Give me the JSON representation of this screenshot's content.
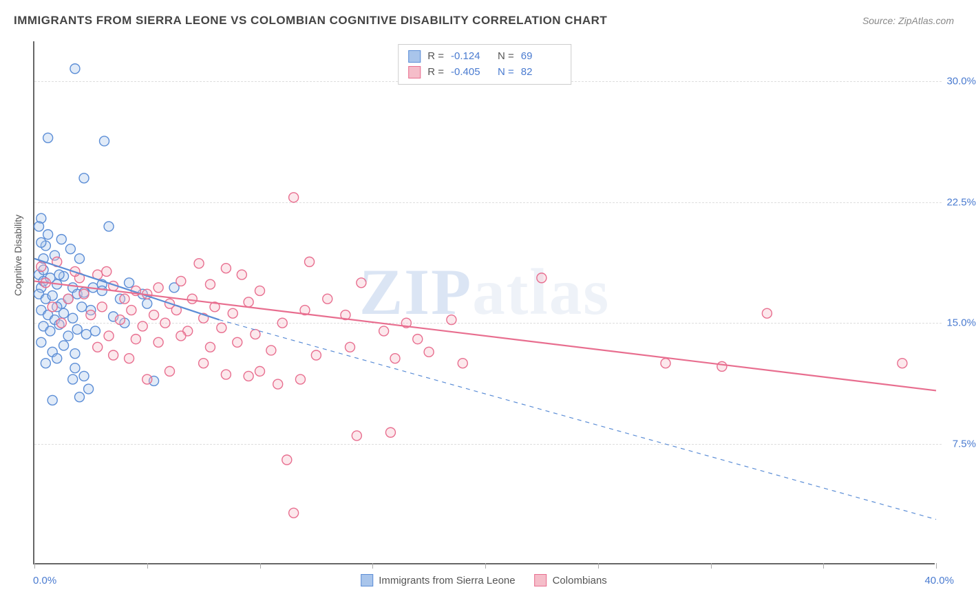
{
  "header": {
    "title": "IMMIGRANTS FROM SIERRA LEONE VS COLOMBIAN COGNITIVE DISABILITY CORRELATION CHART",
    "source_prefix": "Source: ",
    "source_name": "ZipAtlas.com"
  },
  "chart": {
    "type": "scatter",
    "ylabel": "Cognitive Disability",
    "x_min": 0.0,
    "x_max": 40.0,
    "x_min_label": "0.0%",
    "x_max_label": "40.0%",
    "y_min": 0.0,
    "y_max": 32.5,
    "y_ticks": [
      7.5,
      15.0,
      22.5,
      30.0
    ],
    "y_tick_labels": [
      "7.5%",
      "15.0%",
      "22.5%",
      "30.0%"
    ],
    "x_tick_positions": [
      0,
      5,
      10,
      15,
      20,
      25,
      30,
      35,
      40
    ],
    "background_color": "#ffffff",
    "grid_color": "#dddddd",
    "axis_color": "#666666",
    "tick_label_color": "#4a7bd0",
    "marker_radius": 7,
    "marker_fill_opacity": 0.35,
    "marker_stroke_width": 1.4,
    "line_width": 2.2,
    "watermark_text_1": "ZIP",
    "watermark_text_2": "atlas",
    "series": [
      {
        "name": "Immigrants from Sierra Leone",
        "color_stroke": "#5b8dd6",
        "color_fill": "#a9c5eb",
        "R": "-0.124",
        "N": "69",
        "trend": {
          "x1": 0.0,
          "y1": 19.0,
          "x2": 8.2,
          "y2": 15.2,
          "dashed_ext_x2": 40.0,
          "dashed_ext_y2": 2.8
        },
        "points": [
          [
            1.8,
            30.8
          ],
          [
            0.6,
            26.5
          ],
          [
            3.1,
            26.3
          ],
          [
            2.2,
            24.0
          ],
          [
            0.3,
            21.5
          ],
          [
            0.2,
            21.0
          ],
          [
            0.6,
            20.5
          ],
          [
            1.2,
            20.2
          ],
          [
            0.5,
            19.8
          ],
          [
            0.2,
            18.0
          ],
          [
            0.4,
            18.3
          ],
          [
            0.9,
            19.2
          ],
          [
            1.6,
            19.6
          ],
          [
            2.0,
            19.0
          ],
          [
            0.3,
            17.2
          ],
          [
            0.4,
            17.6
          ],
          [
            0.7,
            17.8
          ],
          [
            1.0,
            17.4
          ],
          [
            1.3,
            17.9
          ],
          [
            1.7,
            17.2
          ],
          [
            1.1,
            18.0
          ],
          [
            0.2,
            16.8
          ],
          [
            0.5,
            16.5
          ],
          [
            0.8,
            16.7
          ],
          [
            1.2,
            16.2
          ],
          [
            1.5,
            16.5
          ],
          [
            1.9,
            16.8
          ],
          [
            2.2,
            16.9
          ],
          [
            2.6,
            17.2
          ],
          [
            3.0,
            17.4
          ],
          [
            0.3,
            15.8
          ],
          [
            0.6,
            15.5
          ],
          [
            0.9,
            15.2
          ],
          [
            1.3,
            15.6
          ],
          [
            1.7,
            15.3
          ],
          [
            2.1,
            16.0
          ],
          [
            2.5,
            15.8
          ],
          [
            0.4,
            14.8
          ],
          [
            0.7,
            14.5
          ],
          [
            1.1,
            14.9
          ],
          [
            1.5,
            14.2
          ],
          [
            1.9,
            14.6
          ],
          [
            2.3,
            14.3
          ],
          [
            0.3,
            13.8
          ],
          [
            0.8,
            13.2
          ],
          [
            1.3,
            13.6
          ],
          [
            1.8,
            13.1
          ],
          [
            0.5,
            12.5
          ],
          [
            1.0,
            12.8
          ],
          [
            1.8,
            12.2
          ],
          [
            1.7,
            11.5
          ],
          [
            2.2,
            11.7
          ],
          [
            2.4,
            10.9
          ],
          [
            5.3,
            11.4
          ],
          [
            0.8,
            10.2
          ],
          [
            2.0,
            10.4
          ],
          [
            6.2,
            17.2
          ],
          [
            3.8,
            16.5
          ],
          [
            4.2,
            17.5
          ],
          [
            3.0,
            17.0
          ],
          [
            4.8,
            16.8
          ],
          [
            3.5,
            15.4
          ],
          [
            4.0,
            15.0
          ],
          [
            2.7,
            14.5
          ],
          [
            5.0,
            16.2
          ],
          [
            3.3,
            21.0
          ],
          [
            0.3,
            20.0
          ],
          [
            1.0,
            16.0
          ],
          [
            0.4,
            19.0
          ]
        ]
      },
      {
        "name": "Colombians",
        "color_stroke": "#e86e8f",
        "color_fill": "#f5bdc9",
        "R": "-0.405",
        "N": "82",
        "trend": {
          "x1": 0.0,
          "y1": 17.6,
          "x2": 40.0,
          "y2": 10.8
        },
        "points": [
          [
            11.5,
            22.8
          ],
          [
            7.3,
            18.7
          ],
          [
            8.5,
            18.4
          ],
          [
            9.2,
            18.0
          ],
          [
            7.8,
            17.4
          ],
          [
            10.0,
            17.0
          ],
          [
            6.5,
            17.6
          ],
          [
            5.5,
            17.2
          ],
          [
            4.5,
            17.0
          ],
          [
            3.5,
            17.3
          ],
          [
            4.0,
            16.5
          ],
          [
            5.0,
            16.8
          ],
          [
            6.0,
            16.2
          ],
          [
            7.0,
            16.5
          ],
          [
            8.0,
            16.0
          ],
          [
            9.5,
            16.3
          ],
          [
            3.0,
            16.0
          ],
          [
            4.3,
            15.8
          ],
          [
            5.3,
            15.5
          ],
          [
            6.3,
            15.8
          ],
          [
            7.5,
            15.3
          ],
          [
            8.8,
            15.6
          ],
          [
            3.8,
            15.2
          ],
          [
            4.8,
            14.8
          ],
          [
            5.8,
            15.0
          ],
          [
            6.8,
            14.5
          ],
          [
            8.3,
            14.7
          ],
          [
            9.8,
            14.3
          ],
          [
            11.0,
            15.0
          ],
          [
            12.0,
            15.8
          ],
          [
            3.3,
            14.2
          ],
          [
            4.5,
            14.0
          ],
          [
            5.5,
            13.8
          ],
          [
            6.5,
            14.2
          ],
          [
            7.8,
            13.5
          ],
          [
            9.0,
            13.8
          ],
          [
            10.5,
            13.3
          ],
          [
            14.5,
            17.5
          ],
          [
            15.5,
            14.5
          ],
          [
            16.5,
            15.0
          ],
          [
            17.0,
            14.0
          ],
          [
            18.5,
            15.2
          ],
          [
            14.0,
            13.5
          ],
          [
            16.0,
            12.8
          ],
          [
            17.5,
            13.2
          ],
          [
            15.8,
            8.2
          ],
          [
            14.3,
            8.0
          ],
          [
            11.2,
            6.5
          ],
          [
            12.5,
            13.0
          ],
          [
            19.0,
            12.5
          ],
          [
            10.0,
            12.0
          ],
          [
            7.5,
            12.5
          ],
          [
            8.5,
            11.8
          ],
          [
            9.5,
            11.7
          ],
          [
            11.5,
            3.2
          ],
          [
            22.5,
            17.8
          ],
          [
            28.0,
            12.5
          ],
          [
            30.5,
            12.3
          ],
          [
            32.5,
            15.6
          ],
          [
            38.5,
            12.5
          ],
          [
            2.0,
            17.8
          ],
          [
            1.5,
            16.5
          ],
          [
            2.5,
            15.5
          ],
          [
            1.0,
            18.8
          ],
          [
            0.5,
            17.5
          ],
          [
            1.8,
            18.2
          ],
          [
            2.8,
            18.0
          ],
          [
            0.8,
            16.0
          ],
          [
            1.2,
            15.0
          ],
          [
            0.3,
            18.5
          ],
          [
            2.2,
            16.8
          ],
          [
            3.2,
            18.2
          ],
          [
            12.2,
            18.8
          ],
          [
            13.0,
            16.5
          ],
          [
            13.8,
            15.5
          ],
          [
            11.8,
            11.5
          ],
          [
            10.8,
            11.2
          ],
          [
            6.0,
            12.0
          ],
          [
            5.0,
            11.5
          ],
          [
            4.2,
            12.8
          ],
          [
            3.5,
            13.0
          ],
          [
            2.8,
            13.5
          ]
        ]
      }
    ]
  },
  "bottom_legend": {
    "item1": "Immigrants from Sierra Leone",
    "item2": "Colombians"
  }
}
